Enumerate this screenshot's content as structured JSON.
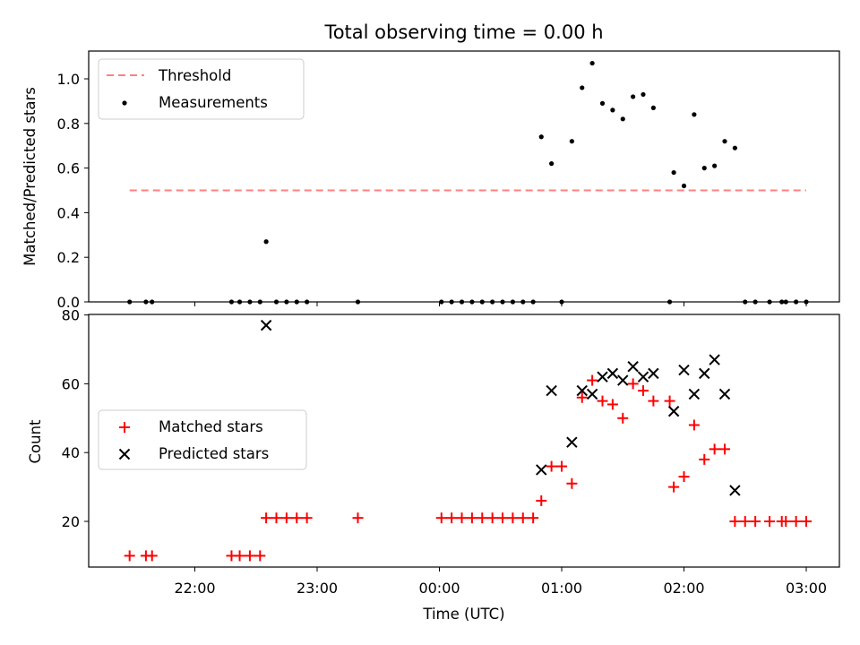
{
  "chart_data": [
    {
      "type": "scatter",
      "title": "Total observing time = 0.00 h",
      "xlabel": "",
      "ylabel": "Matched/Predicted stars",
      "ylim": [
        0,
        1.12
      ],
      "yticks": [
        "0.0",
        "0.2",
        "0.4",
        "0.6",
        "0.8",
        "1.0"
      ],
      "legend_position": "upper-left",
      "threshold": {
        "name": "Threshold",
        "value": 0.5,
        "x_start": "21:28",
        "x_end": "03:00",
        "color": "#ff8080"
      },
      "series": [
        {
          "name": "Measurements",
          "color": "#000000",
          "points": [
            [
              "21:28",
              0.0
            ],
            [
              "21:36",
              0.0
            ],
            [
              "21:39",
              0.0
            ],
            [
              "22:18",
              0.0
            ],
            [
              "22:22",
              0.0
            ],
            [
              "22:27",
              0.0
            ],
            [
              "22:32",
              0.0
            ],
            [
              "22:35",
              0.27
            ],
            [
              "22:40",
              0.0
            ],
            [
              "22:45",
              0.0
            ],
            [
              "22:50",
              0.0
            ],
            [
              "22:55",
              0.0
            ],
            [
              "23:20",
              0.0
            ],
            [
              "00:01",
              0.0
            ],
            [
              "00:06",
              0.0
            ],
            [
              "00:11",
              0.0
            ],
            [
              "00:16",
              0.0
            ],
            [
              "00:21",
              0.0
            ],
            [
              "00:26",
              0.0
            ],
            [
              "00:31",
              0.0
            ],
            [
              "00:36",
              0.0
            ],
            [
              "00:41",
              0.0
            ],
            [
              "00:46",
              0.0
            ],
            [
              "00:50",
              0.74
            ],
            [
              "00:55",
              0.62
            ],
            [
              "01:00",
              0.0
            ],
            [
              "01:05",
              0.72
            ],
            [
              "01:10",
              0.96
            ],
            [
              "01:15",
              1.07
            ],
            [
              "01:20",
              0.89
            ],
            [
              "01:25",
              0.86
            ],
            [
              "01:30",
              0.82
            ],
            [
              "01:35",
              0.92
            ],
            [
              "01:40",
              0.93
            ],
            [
              "01:45",
              0.87
            ],
            [
              "01:53",
              0.0
            ],
            [
              "01:55",
              0.58
            ],
            [
              "02:00",
              0.52
            ],
            [
              "02:05",
              0.84
            ],
            [
              "02:10",
              0.6
            ],
            [
              "02:15",
              0.61
            ],
            [
              "02:20",
              0.72
            ],
            [
              "02:25",
              0.69
            ],
            [
              "02:30",
              0.0
            ],
            [
              "02:35",
              0.0
            ],
            [
              "02:42",
              0.0
            ],
            [
              "02:48",
              0.0
            ],
            [
              "02:50",
              0.0
            ],
            [
              "02:55",
              0.0
            ],
            [
              "03:00",
              0.0
            ]
          ]
        }
      ]
    },
    {
      "type": "scatter",
      "title": "",
      "xlabel": "Time (UTC)",
      "ylabel": "Count",
      "ylim": [
        7,
        80.5
      ],
      "yticks": [
        "20",
        "40",
        "60",
        "80"
      ],
      "xticks": [
        "22:00",
        "23:00",
        "00:00",
        "01:00",
        "02:00",
        "03:00"
      ],
      "legend_position": "center-left",
      "series": [
        {
          "name": "Matched stars",
          "marker": "plus",
          "color": "#ff0000",
          "points": [
            [
              "21:28",
              10
            ],
            [
              "21:36",
              10
            ],
            [
              "21:39",
              10
            ],
            [
              "22:18",
              10
            ],
            [
              "22:22",
              10
            ],
            [
              "22:27",
              10
            ],
            [
              "22:32",
              10
            ],
            [
              "22:35",
              21
            ],
            [
              "22:40",
              21
            ],
            [
              "22:45",
              21
            ],
            [
              "22:50",
              21
            ],
            [
              "22:55",
              21
            ],
            [
              "23:20",
              21
            ],
            [
              "00:01",
              21
            ],
            [
              "00:06",
              21
            ],
            [
              "00:11",
              21
            ],
            [
              "00:16",
              21
            ],
            [
              "00:21",
              21
            ],
            [
              "00:26",
              21
            ],
            [
              "00:31",
              21
            ],
            [
              "00:36",
              21
            ],
            [
              "00:41",
              21
            ],
            [
              "00:46",
              21
            ],
            [
              "00:50",
              26
            ],
            [
              "00:55",
              36
            ],
            [
              "01:00",
              36
            ],
            [
              "01:05",
              31
            ],
            [
              "01:10",
              56
            ],
            [
              "01:15",
              61
            ],
            [
              "01:20",
              55
            ],
            [
              "01:25",
              54
            ],
            [
              "01:30",
              50
            ],
            [
              "01:35",
              60
            ],
            [
              "01:40",
              58
            ],
            [
              "01:45",
              55
            ],
            [
              "01:53",
              55
            ],
            [
              "01:55",
              30
            ],
            [
              "02:00",
              33
            ],
            [
              "02:05",
              48
            ],
            [
              "02:10",
              38
            ],
            [
              "02:15",
              41
            ],
            [
              "02:20",
              41
            ],
            [
              "02:25",
              20
            ],
            [
              "02:30",
              20
            ],
            [
              "02:35",
              20
            ],
            [
              "02:42",
              20
            ],
            [
              "02:48",
              20
            ],
            [
              "02:50",
              20
            ],
            [
              "02:55",
              20
            ],
            [
              "03:00",
              20
            ]
          ]
        },
        {
          "name": "Predicted stars",
          "marker": "x",
          "color": "#000000",
          "points": [
            [
              "22:35",
              77
            ],
            [
              "00:50",
              35
            ],
            [
              "00:55",
              58
            ],
            [
              "01:05",
              43
            ],
            [
              "01:10",
              58
            ],
            [
              "01:15",
              57
            ],
            [
              "01:20",
              62
            ],
            [
              "01:25",
              63
            ],
            [
              "01:30",
              61
            ],
            [
              "01:35",
              65
            ],
            [
              "01:40",
              62
            ],
            [
              "01:45",
              63
            ],
            [
              "01:55",
              52
            ],
            [
              "02:00",
              64
            ],
            [
              "02:05",
              57
            ],
            [
              "02:10",
              63
            ],
            [
              "02:15",
              67
            ],
            [
              "02:20",
              57
            ],
            [
              "02:25",
              29
            ]
          ]
        }
      ]
    }
  ]
}
